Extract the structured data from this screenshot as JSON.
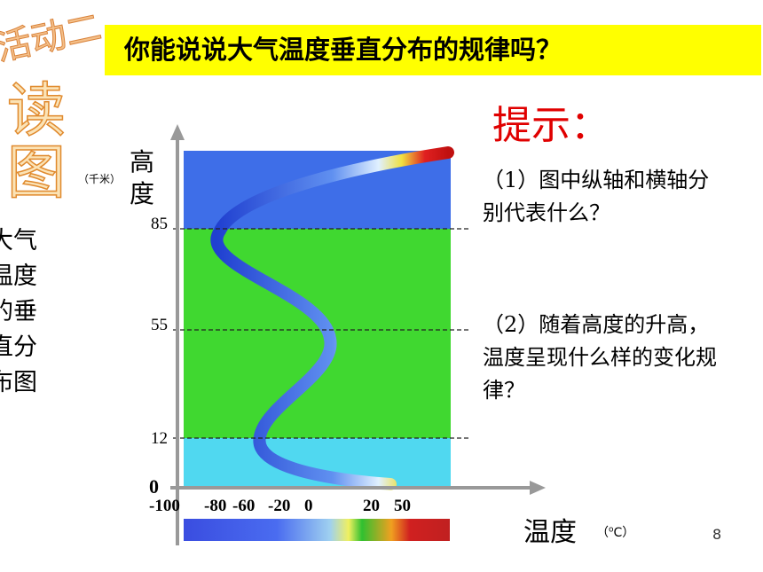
{
  "activity": "活动二",
  "read_figure": "读图",
  "title": "你能说说大气温度垂直分布的规律吗？",
  "caption_lines": [
    "大气",
    "温度",
    "的垂",
    "直分",
    "布图"
  ],
  "hint": {
    "title": "提示：",
    "items": [
      "（1）图中纵轴和横轴分别代表什么？",
      "（2）随着高度的升高，温度呈现什么样的变化规律？"
    ]
  },
  "figure": {
    "y_label": "高度",
    "y_unit": "（千米）",
    "y_ticks": [
      0,
      12,
      55,
      85
    ],
    "x_ticks": [
      -100,
      -80,
      -60,
      -20,
      0,
      20,
      50
    ],
    "x_label": "温度",
    "x_unit": {
      "open": "（",
      "sup": "o",
      "rest": "C）"
    }
  },
  "page_number": "8"
}
